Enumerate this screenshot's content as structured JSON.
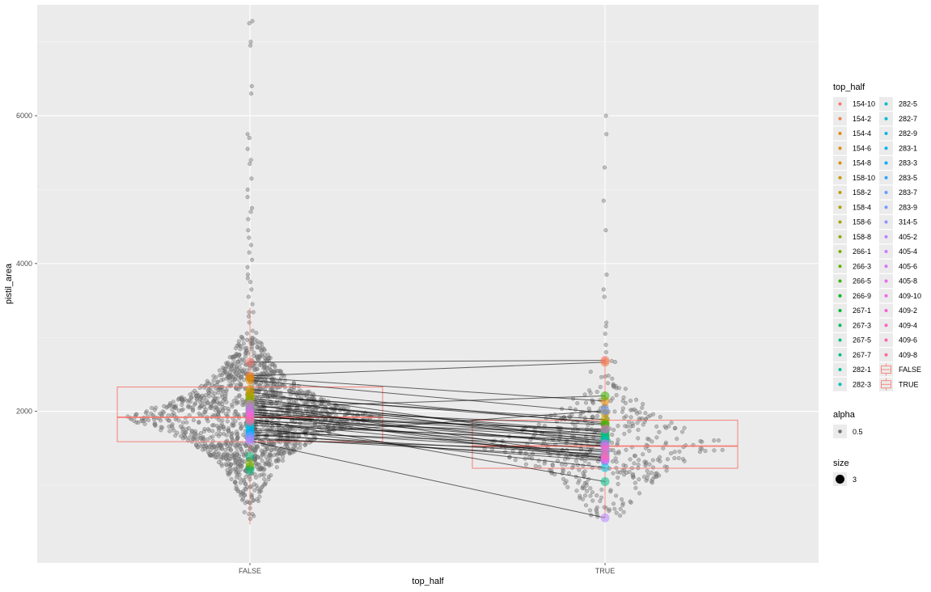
{
  "chart_data": {
    "type": "scatter",
    "xlabel": "top_half",
    "ylabel": "pistil_area",
    "categories": [
      "FALSE",
      "TRUE"
    ],
    "ylim": [
      -50,
      7500
    ],
    "yticks": [
      2000,
      4000,
      6000
    ],
    "grid": true,
    "legend_position": "right",
    "boxplot": [
      {
        "category": "FALSE",
        "median": 1920,
        "q1": 1590,
        "q3": 2330,
        "whisker_low": 470,
        "whisker_high": 3400,
        "color": "#F8766D"
      },
      {
        "category": "TRUE",
        "median": 1530,
        "q1": 1230,
        "q3": 1880,
        "whisker_low": 560,
        "whisker_high": 2750,
        "color": "#F8766D"
      }
    ],
    "outliers_false": [
      3450,
      3550,
      3650,
      3750,
      3800,
      3850,
      3950,
      4050,
      4150,
      4250,
      4350,
      4450,
      4600,
      4700,
      4750,
      4900,
      5000,
      5150,
      5350,
      5400,
      5550,
      5700,
      5750,
      6300,
      6400,
      6950,
      7000,
      7250,
      7280
    ],
    "outliers_true": [
      2800,
      2900,
      3050,
      3150,
      3200,
      3550,
      3650,
      3850,
      4450,
      4850,
      5300,
      5750,
      6000
    ],
    "swarm_color": "#7f7f7f",
    "genotypes": [
      {
        "id": "154-10",
        "color": "#F8766D",
        "false_val": 2665,
        "true_val": 2690
      },
      {
        "id": "154-2",
        "color": "#F07E4D",
        "false_val": 2480,
        "true_val": 2665
      },
      {
        "id": "154-4",
        "color": "#E58700",
        "false_val": 2460,
        "true_val": 2140
      },
      {
        "id": "154-6",
        "color": "#DE8C00",
        "false_val": 2420,
        "true_val": 1980
      },
      {
        "id": "154-8",
        "color": "#D89000",
        "false_val": 2300,
        "true_val": 1830
      },
      {
        "id": "158-10",
        "color": "#C99800",
        "false_val": 2260,
        "true_val": 1590
      },
      {
        "id": "158-2",
        "color": "#BB9D00",
        "false_val": 2220,
        "true_val": 1850
      },
      {
        "id": "158-4",
        "color": "#ADA200",
        "false_val": 2200,
        "true_val": 1890
      },
      {
        "id": "158-6",
        "color": "#A3A500",
        "false_val": 2180,
        "true_val": 1570
      },
      {
        "id": "158-8",
        "color": "#8DAB00",
        "false_val": 2150,
        "true_val": 1680
      },
      {
        "id": "266-1",
        "color": "#7CAE00",
        "false_val": 2120,
        "true_val": 1720
      },
      {
        "id": "266-3",
        "color": "#5EB300",
        "false_val": 2080,
        "true_val": 1650
      },
      {
        "id": "266-5",
        "color": "#39B600",
        "false_val": 2050,
        "true_val": 2210
      },
      {
        "id": "266-9",
        "color": "#00B81F",
        "false_val": 2020,
        "true_val": 1820
      },
      {
        "id": "267-1",
        "color": "#00BA38",
        "false_val": 1990,
        "true_val": 1660
      },
      {
        "id": "267-3",
        "color": "#00BC59",
        "false_val": 1960,
        "true_val": 1740
      },
      {
        "id": "267-5",
        "color": "#00BF7D",
        "false_val": 1930,
        "true_val": 1630
      },
      {
        "id": "267-7",
        "color": "#00C08B",
        "false_val": 1900,
        "true_val": 1050
      },
      {
        "id": "282-1",
        "color": "#00C19F",
        "false_val": 1870,
        "true_val": 1700
      },
      {
        "id": "282-3",
        "color": "#00C0B8",
        "false_val": 1840,
        "true_val": 1580
      },
      {
        "id": "282-5",
        "color": "#00BFC4",
        "false_val": 1810,
        "true_val": 1610
      },
      {
        "id": "282-7",
        "color": "#00BCD8",
        "false_val": 1780,
        "true_val": 1240
      },
      {
        "id": "282-9",
        "color": "#00B8E7",
        "false_val": 1750,
        "true_val": 1450
      },
      {
        "id": "283-1",
        "color": "#00B4EF",
        "false_val": 1720,
        "true_val": 1540
      },
      {
        "id": "283-3",
        "color": "#00A9FF",
        "false_val": 1700,
        "true_val": 1330
      },
      {
        "id": "283-5",
        "color": "#35A2FF",
        "false_val": 1680,
        "true_val": 1420
      },
      {
        "id": "283-7",
        "color": "#619CFF",
        "false_val": 1660,
        "true_val": 2010
      },
      {
        "id": "283-9",
        "color": "#7997FF",
        "false_val": 1640,
        "true_val": 1380
      },
      {
        "id": "314-5",
        "color": "#8F91FF",
        "false_val": 1620,
        "true_val": 1470
      },
      {
        "id": "405-2",
        "color": "#B983FF",
        "false_val": 1600,
        "true_val": 560
      },
      {
        "id": "405-4",
        "color": "#CA7BFF",
        "false_val": 2100,
        "true_val": 1370
      },
      {
        "id": "405-6",
        "color": "#DB72FB",
        "false_val": 2040,
        "true_val": 1520
      },
      {
        "id": "405-8",
        "color": "#E76BF3",
        "false_val": 2000,
        "true_val": 1360
      },
      {
        "id": "409-10",
        "color": "#F166E8",
        "false_val": 1970,
        "true_val": 1340
      },
      {
        "id": "409-2",
        "color": "#F962DD",
        "false_val": 1950,
        "true_val": 1560
      },
      {
        "id": "409-4",
        "color": "#FF61C9",
        "false_val": 1920,
        "true_val": 1760
      },
      {
        "id": "409-6",
        "color": "#FF64B0",
        "false_val": 1890,
        "true_val": 1480
      },
      {
        "id": "409-8",
        "color": "#FF6A98",
        "false_val": 1860,
        "true_val": 1400
      },
      {
        "extra_false": [
          1390,
          1250,
          1200,
          1300
        ]
      }
    ],
    "legend": {
      "top_half_title": "top_half",
      "box_entries": [
        "FALSE",
        "TRUE"
      ],
      "alpha_title": "alpha",
      "alpha_value": "0.5",
      "size_title": "size",
      "size_value": "3"
    }
  }
}
